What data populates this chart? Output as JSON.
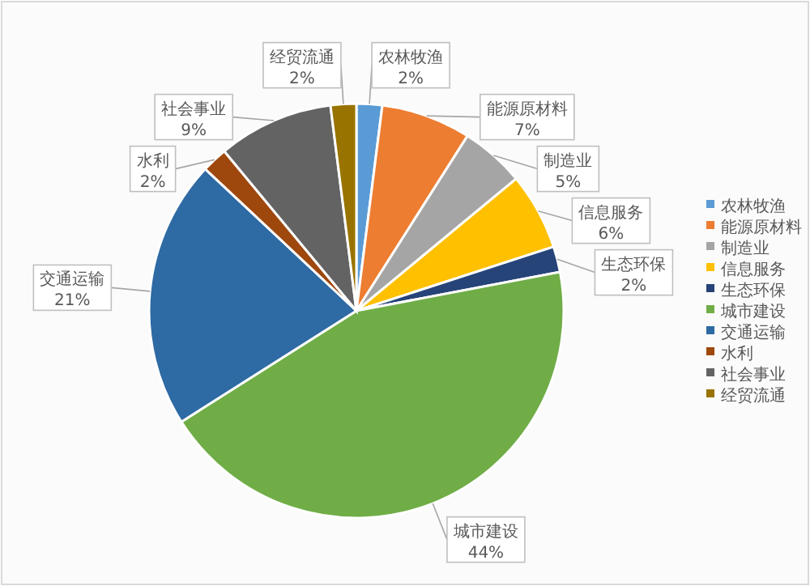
{
  "chart_data": {
    "type": "pie",
    "categories": [
      "农林牧渔",
      "能源原材料",
      "制造业",
      "信息服务",
      "生态环保",
      "城市建设",
      "交通运输",
      "水利",
      "社会事业",
      "经贸流通"
    ],
    "values": [
      2,
      7,
      5,
      6,
      2,
      44,
      21,
      2,
      9,
      2
    ],
    "value_labels": [
      "2%",
      "7%",
      "5%",
      "6%",
      "2%",
      "44%",
      "21%",
      "2%",
      "9%",
      "2%"
    ],
    "colors": [
      "#5b9bd5",
      "#ed7d31",
      "#a5a5a5",
      "#ffc000",
      "#264478",
      "#70ad47",
      "#2e6aa3",
      "#9e480e",
      "#636363",
      "#997300"
    ],
    "legend": "right"
  }
}
